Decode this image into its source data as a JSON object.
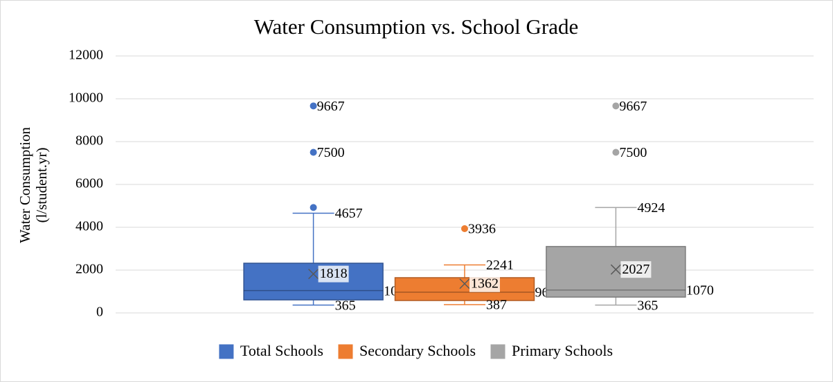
{
  "chart_data": {
    "type": "box",
    "title": "Water Consumption vs. School Grade",
    "y_label": [
      "Water Consumption",
      "(l/student.yr)"
    ],
    "ylim": [
      0,
      12000
    ],
    "yticks": [
      0,
      2000,
      4000,
      6000,
      8000,
      10000,
      12000
    ],
    "grid": true,
    "legend": "bottom",
    "series": [
      {
        "name": "Total Schools",
        "color": "#4472c4",
        "min": 365,
        "q1": 610,
        "median": 1043,
        "q3": 2320,
        "max": 4657,
        "mean": 1818,
        "outliers": [
          9667,
          7500,
          4924
        ],
        "outlier_labels": [
          "9667",
          "7500",
          null
        ]
      },
      {
        "name": "Secondary Schools",
        "color": "#ed7d31",
        "min": 387,
        "q1": 580,
        "median": 967,
        "q3": 1645,
        "max": 2241,
        "mean": 1362,
        "outliers": [
          3936
        ],
        "outlier_labels": [
          "3936"
        ]
      },
      {
        "name": "Primary Schools",
        "color": "#a5a5a5",
        "min": 365,
        "q1": 740,
        "median": 1070,
        "q3": 3100,
        "max": 4924,
        "mean": 2027,
        "outliers": [
          9667,
          7500
        ],
        "outlier_labels": [
          "9667",
          "7500"
        ]
      }
    ]
  }
}
